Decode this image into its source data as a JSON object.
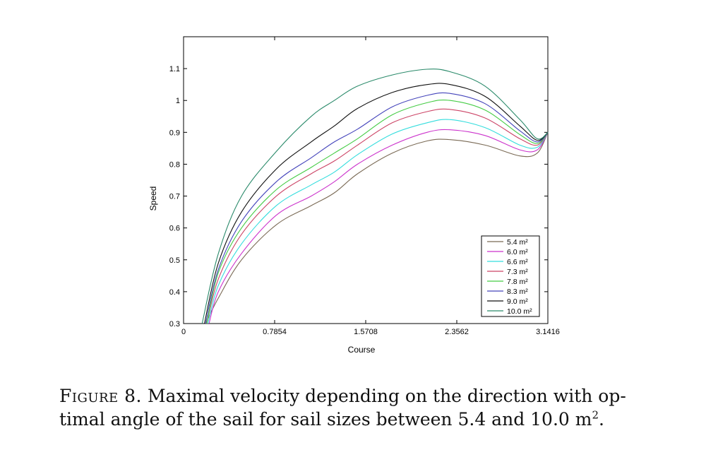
{
  "chart_data": {
    "type": "line",
    "title": "",
    "xlabel": "Course",
    "ylabel": "Speed",
    "xlim": [
      0,
      3.1416
    ],
    "ylim": [
      0.3,
      1.2
    ],
    "xticks": [
      0,
      0.7854,
      1.5708,
      2.3562,
      3.1416
    ],
    "xtick_labels": [
      "0",
      "0.7854",
      "1.5708",
      "2.3562",
      "3.1416"
    ],
    "yticks": [
      0.3,
      0.4,
      0.5,
      0.6,
      0.7,
      0.8,
      0.9,
      1.0,
      1.1
    ],
    "ytick_labels": [
      "0.3",
      "0.4",
      "0.5",
      "0.6",
      "0.7",
      "0.8",
      "0.9",
      "1",
      "1.1"
    ],
    "legend_position": "bottom-right",
    "series": [
      {
        "name": "5.4 m²",
        "color": "#7a6a55",
        "x": [
          0.19,
          0.3,
          0.5,
          0.8,
          1.1,
          1.3,
          1.5,
          1.8,
          2.1,
          2.3,
          2.6,
          2.9,
          3.05,
          3.1416
        ],
        "y": [
          0.3,
          0.38,
          0.5,
          0.61,
          0.67,
          0.71,
          0.77,
          0.835,
          0.873,
          0.877,
          0.86,
          0.826,
          0.835,
          0.9
        ]
      },
      {
        "name": "6.0 m²",
        "color": "#cc33cc",
        "x": [
          0.22,
          0.3,
          0.5,
          0.8,
          1.1,
          1.3,
          1.5,
          1.8,
          2.1,
          2.3,
          2.6,
          2.9,
          3.05,
          3.1416
        ],
        "y": [
          0.3,
          0.4,
          0.52,
          0.64,
          0.7,
          0.745,
          0.8,
          0.86,
          0.9,
          0.908,
          0.89,
          0.845,
          0.845,
          0.9
        ]
      },
      {
        "name": "6.6 m²",
        "color": "#33dddd",
        "x": [
          0.21,
          0.3,
          0.5,
          0.8,
          1.1,
          1.3,
          1.5,
          1.8,
          2.1,
          2.3,
          2.6,
          2.9,
          3.05,
          3.1416
        ],
        "y": [
          0.3,
          0.42,
          0.55,
          0.67,
          0.735,
          0.775,
          0.83,
          0.895,
          0.93,
          0.94,
          0.915,
          0.86,
          0.853,
          0.9
        ]
      },
      {
        "name": "7.3 m²",
        "color": "#cc4466",
        "x": [
          0.2,
          0.3,
          0.5,
          0.8,
          1.1,
          1.3,
          1.5,
          1.8,
          2.1,
          2.3,
          2.6,
          2.9,
          3.05,
          3.1416
        ],
        "y": [
          0.3,
          0.44,
          0.58,
          0.7,
          0.77,
          0.81,
          0.86,
          0.93,
          0.965,
          0.972,
          0.945,
          0.88,
          0.86,
          0.9
        ]
      },
      {
        "name": "7.8 m²",
        "color": "#44cc44",
        "x": [
          0.2,
          0.3,
          0.5,
          0.8,
          1.1,
          1.3,
          1.5,
          1.8,
          2.1,
          2.3,
          2.6,
          2.9,
          3.05,
          3.1416
        ],
        "y": [
          0.3,
          0.46,
          0.6,
          0.72,
          0.79,
          0.835,
          0.88,
          0.955,
          0.993,
          1.0,
          0.97,
          0.893,
          0.865,
          0.9
        ]
      },
      {
        "name": "8.3 m²",
        "color": "#4444bb",
        "x": [
          0.19,
          0.3,
          0.5,
          0.8,
          1.1,
          1.3,
          1.5,
          1.8,
          2.1,
          2.3,
          2.6,
          2.9,
          3.05,
          3.1416
        ],
        "y": [
          0.3,
          0.47,
          0.62,
          0.745,
          0.82,
          0.87,
          0.91,
          0.98,
          1.016,
          1.022,
          0.99,
          0.905,
          0.87,
          0.9
        ]
      },
      {
        "name": "9.0 m²",
        "color": "#111111",
        "x": [
          0.18,
          0.3,
          0.5,
          0.8,
          1.1,
          1.3,
          1.5,
          1.8,
          2.1,
          2.3,
          2.6,
          2.9,
          3.05,
          3.1416
        ],
        "y": [
          0.3,
          0.49,
          0.65,
          0.785,
          0.87,
          0.92,
          0.975,
          1.025,
          1.05,
          1.05,
          1.013,
          0.92,
          0.875,
          0.9
        ]
      },
      {
        "name": "10.0 m²",
        "color": "#2a8a6a",
        "x": [
          0.16,
          0.3,
          0.5,
          0.8,
          1.1,
          1.3,
          1.5,
          1.8,
          2.1,
          2.3,
          2.6,
          2.9,
          3.05,
          3.1416
        ],
        "y": [
          0.3,
          0.52,
          0.7,
          0.84,
          0.95,
          1.0,
          1.045,
          1.08,
          1.098,
          1.09,
          1.045,
          0.94,
          0.88,
          0.9
        ]
      }
    ]
  },
  "caption": {
    "label": "Figure 8.",
    "text_line1": "Maximal velocity depending on the direction with op-",
    "text_line2": "timal angle of the sail for sail sizes between 5.4 and 10.0 m",
    "superscript": "2",
    "suffix": "."
  }
}
